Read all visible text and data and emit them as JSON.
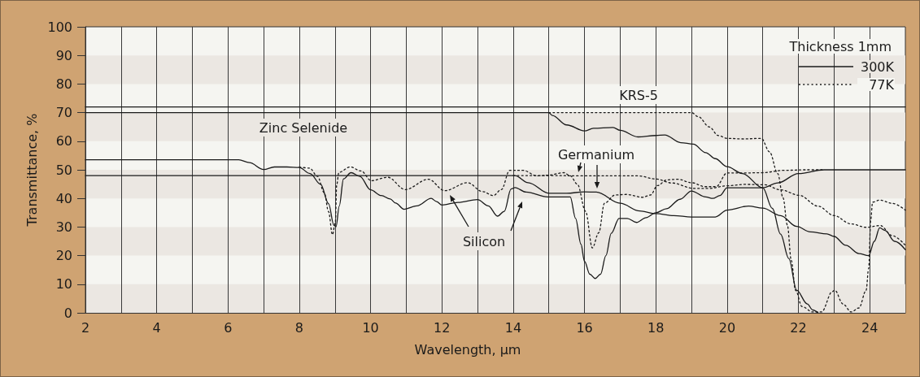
{
  "chart_data": {
    "type": "line",
    "xlabel": "Wavelength, µm",
    "ylabel": "Transmittance, %",
    "legend_title": "Thickness 1mm",
    "legend": "top right",
    "grid": "x",
    "marker": "none",
    "xlim": [
      2,
      25
    ],
    "ylim": [
      0,
      100
    ],
    "xticks": [
      2,
      {
        "value": 3,
        "label": null
      },
      4,
      {
        "value": 5,
        "label": null
      },
      6,
      {
        "value": 7,
        "label": null
      },
      8,
      {
        "value": 9,
        "label": null
      },
      10,
      {
        "value": 11,
        "label": null
      },
      12,
      {
        "value": 13,
        "label": null
      },
      14,
      {
        "value": 15,
        "label": null
      },
      16,
      {
        "value": 17,
        "label": null
      },
      18,
      {
        "value": 19,
        "label": null
      },
      20,
      {
        "value": 21,
        "label": null
      },
      22,
      {
        "value": 23,
        "label": null
      },
      24
    ],
    "yticks": [
      0,
      10,
      20,
      30,
      40,
      50,
      60,
      70,
      80,
      90,
      100
    ],
    "bands": [
      {
        "axis": "y",
        "from": 0,
        "to": 10,
        "color": "#ebe7e2"
      },
      {
        "axis": "y",
        "from": 20,
        "to": 30,
        "color": "#ebe7e2"
      },
      {
        "axis": "y",
        "from": 40,
        "to": 50,
        "color": "#ebe7e2"
      },
      {
        "axis": "y",
        "from": 60,
        "to": 70,
        "color": "#ebe7e2"
      },
      {
        "axis": "y",
        "from": 80,
        "to": 90,
        "color": "#ebe7e2"
      }
    ],
    "annotations": [
      "KRS-5",
      "Zinc Selenide",
      "Germanium",
      "Silicon"
    ],
    "series": [
      {
        "name": "300K",
        "color": "#1a1a1a",
        "line_style": "solid",
        "x": [
          2,
          25
        ],
        "values": [
          72,
          72
        ]
      },
      {
        "color": "#1a1a1a",
        "line_style": "solid",
        "x": [
          2,
          15,
          15.1,
          15.5,
          16,
          16.25,
          16.8,
          17,
          17.5,
          18,
          18.25,
          18.7,
          19.05,
          19.4,
          19.67,
          20,
          20.43,
          21,
          21.27,
          21.5,
          21.73,
          21.95,
          22.25,
          22.4,
          22.55
        ],
        "values": [
          70,
          70,
          69,
          65.7,
          63.6,
          64.5,
          64.8,
          63.8,
          61.5,
          62,
          62.2,
          59.5,
          59,
          56,
          53.9,
          51.1,
          48.7,
          43.7,
          36.5,
          27.5,
          19,
          7.9,
          3.1,
          1,
          0
        ]
      },
      {
        "name": "77K",
        "color": "#1a1a1a",
        "line_style": "dotted",
        "x": [
          15,
          19,
          19.2,
          19.5,
          19.75,
          20,
          20.45,
          20.96,
          21.19,
          21.42,
          21.57,
          21.69,
          21.8,
          21.92,
          22.1,
          22.4,
          22.65,
          22.95,
          23.02,
          23.25,
          23.48,
          23.7,
          23.9,
          23.97,
          24.03,
          24.08,
          24.28,
          24.63,
          25
        ],
        "values": [
          70,
          70,
          68.5,
          65,
          62,
          61,
          60.8,
          61,
          56.3,
          48.7,
          40.2,
          30.7,
          18.3,
          7.9,
          2.2,
          0.3,
          0.3,
          7.4,
          7.9,
          3.1,
          0.3,
          1.7,
          7.9,
          15.5,
          32.6,
          38.7,
          39.4,
          38.3,
          35.9
        ]
      },
      {
        "color": "#1a1a1a",
        "line_style": "solid",
        "x": [
          2,
          6.3,
          6.6,
          7,
          7.3,
          7.65,
          8,
          8.3,
          8.6,
          8.82,
          8.97,
          9.03,
          9.12,
          9.24,
          9.45,
          9.7,
          10,
          10.3,
          10.55,
          10.7,
          10.94,
          11.3,
          11.7,
          11.85,
          12,
          12.45,
          13,
          13.3,
          13.56,
          13.75,
          13.94,
          14.05,
          14.36,
          14.97,
          15.6,
          15.75,
          15.9,
          16,
          16.15,
          16.3,
          16.45,
          16.6,
          16.75,
          16.97,
          17.2,
          17.46,
          17.73,
          18,
          18.3,
          18.68,
          19,
          19.4,
          19.6,
          19.8,
          20,
          21,
          21.42,
          22,
          22.72,
          25
        ],
        "values": [
          53.5,
          53.5,
          52.5,
          50.1,
          51,
          51,
          50.8,
          48.7,
          44.9,
          38.2,
          30.6,
          30.1,
          37.3,
          46.8,
          49,
          47.7,
          43,
          41,
          39.8,
          38.4,
          36.2,
          37.4,
          40,
          38.9,
          37.7,
          38.6,
          39.6,
          37.4,
          33.8,
          35.5,
          43.3,
          43.8,
          42.2,
          40.5,
          40.5,
          33,
          24,
          18,
          13.5,
          12,
          13.5,
          20,
          27.8,
          33,
          33,
          31.6,
          33.3,
          35,
          36.4,
          39.7,
          42.6,
          40.5,
          40,
          41,
          43.7,
          43.7,
          45.4,
          48.7,
          50,
          50
        ]
      },
      {
        "color": "#1a1a1a",
        "line_style": "dotted",
        "x": [
          8,
          8.29,
          8.51,
          8.7,
          8.82,
          8.93,
          9.01,
          9.05,
          9.11,
          9.43,
          9.73,
          10.02,
          10.48,
          10.97,
          11.62,
          12.08,
          12.72,
          13.14,
          13.44,
          13.67,
          13.9,
          14.28,
          14.66,
          14.97,
          15.42,
          15.6,
          15.8,
          16.03,
          16.22,
          16.4,
          16.56,
          16.86,
          17.17,
          17.63,
          17.85,
          18.05,
          18.31,
          18.62,
          19,
          19.38,
          19.69,
          20,
          20.5,
          21,
          21.57,
          22.2,
          22.71
        ],
        "values": [
          51,
          50.6,
          47.7,
          42,
          35.4,
          27.3,
          31.6,
          44.9,
          49.1,
          51,
          49.6,
          46.2,
          47.4,
          43.1,
          46.7,
          42.7,
          45.5,
          42.4,
          41,
          43.1,
          49.8,
          49.8,
          47.9,
          48.1,
          49,
          47.9,
          45,
          35.5,
          22.7,
          28,
          38.3,
          41.2,
          41.4,
          40.4,
          41.2,
          44.5,
          46.5,
          46.7,
          45.5,
          44.1,
          44.1,
          48.9,
          48.9,
          49,
          49.8,
          50,
          50
        ]
      },
      {
        "color": "#1a1a1a",
        "line_style": "solid",
        "x": [
          2,
          14.05,
          14.42,
          15,
          15.5,
          16,
          16.33,
          17,
          17.55,
          18,
          18.5,
          19,
          19.67,
          20,
          20.6,
          21,
          21.5,
          21.95,
          22.33,
          22.8,
          23,
          23.33,
          23.7,
          23.97,
          24.13,
          24.28,
          24.43,
          24.7,
          25
        ],
        "values": [
          48,
          48,
          45.5,
          41.8,
          41.8,
          42.3,
          42.2,
          38.3,
          35.6,
          34.7,
          34,
          33.5,
          33.5,
          35.9,
          37.3,
          36.6,
          34,
          30.2,
          28.3,
          27.6,
          26.7,
          23.6,
          20.7,
          20,
          25,
          29.7,
          28.8,
          25,
          22.1
        ]
      },
      {
        "color": "#1a1a1a",
        "line_style": "dotted",
        "x": [
          14,
          15,
          15.9,
          17,
          17.5,
          18,
          18.45,
          19.06,
          19.5,
          19.98,
          20.5,
          21.04,
          21.5,
          22.02,
          22.55,
          23,
          23.47,
          23.9,
          24.3,
          24.63,
          25
        ],
        "values": [
          48,
          48,
          47.9,
          47.9,
          47.9,
          46.8,
          45.4,
          43.5,
          43.5,
          44.4,
          44.9,
          44.8,
          43,
          41.1,
          37.3,
          34,
          31.1,
          29.9,
          30.5,
          27,
          23.6
        ]
      }
    ]
  }
}
